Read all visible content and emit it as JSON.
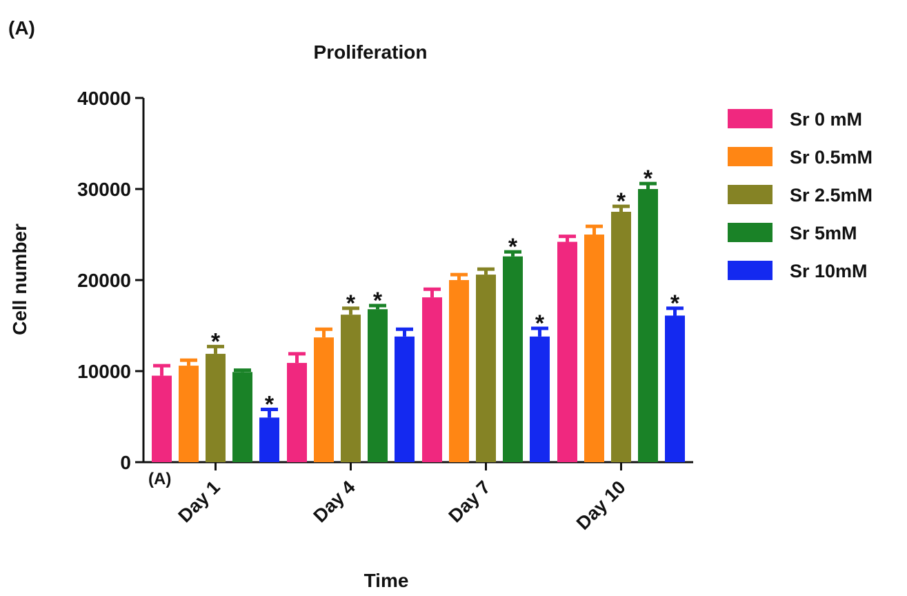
{
  "panel_label": "(A)",
  "chart_data": {
    "type": "bar",
    "title": "Proliferation",
    "xlabel": "Time",
    "ylabel": "Cell number",
    "inner_label": "(A)",
    "categories": [
      "Day 1",
      "Day 4",
      "Day 7",
      "Day 10"
    ],
    "ylim": [
      0,
      40000
    ],
    "yticks": [
      0,
      10000,
      20000,
      30000,
      40000
    ],
    "ytick_labels": [
      "0",
      "10000",
      "20000",
      "30000",
      "40000"
    ],
    "grid": false,
    "legend_position": "right",
    "significance_marker": "*",
    "series": [
      {
        "name": "Sr 0 mM",
        "color": "#f0287f",
        "values": [
          9500,
          10900,
          18100,
          24200
        ],
        "errors": [
          1100,
          1000,
          900,
          600
        ],
        "significant": [
          false,
          false,
          false,
          false
        ]
      },
      {
        "name": "Sr 0.5mM",
        "color": "#ff8614",
        "values": [
          10600,
          13700,
          20000,
          25000
        ],
        "errors": [
          600,
          900,
          600,
          900
        ],
        "significant": [
          false,
          false,
          false,
          false
        ]
      },
      {
        "name": "Sr 2.5mM",
        "color": "#858325",
        "values": [
          11900,
          16200,
          20600,
          27500
        ],
        "errors": [
          800,
          700,
          600,
          600
        ],
        "significant": [
          true,
          true,
          false,
          true
        ]
      },
      {
        "name": "Sr 5mM",
        "color": "#1a8227",
        "values": [
          9900,
          16800,
          22600,
          30000
        ],
        "errors": [
          200,
          400,
          500,
          600
        ],
        "significant": [
          false,
          true,
          true,
          true
        ]
      },
      {
        "name": "Sr 10mM",
        "color": "#1429f0",
        "values": [
          4900,
          13800,
          13800,
          16100
        ],
        "errors": [
          900,
          800,
          900,
          800
        ],
        "significant": [
          true,
          false,
          true,
          true
        ]
      }
    ]
  }
}
